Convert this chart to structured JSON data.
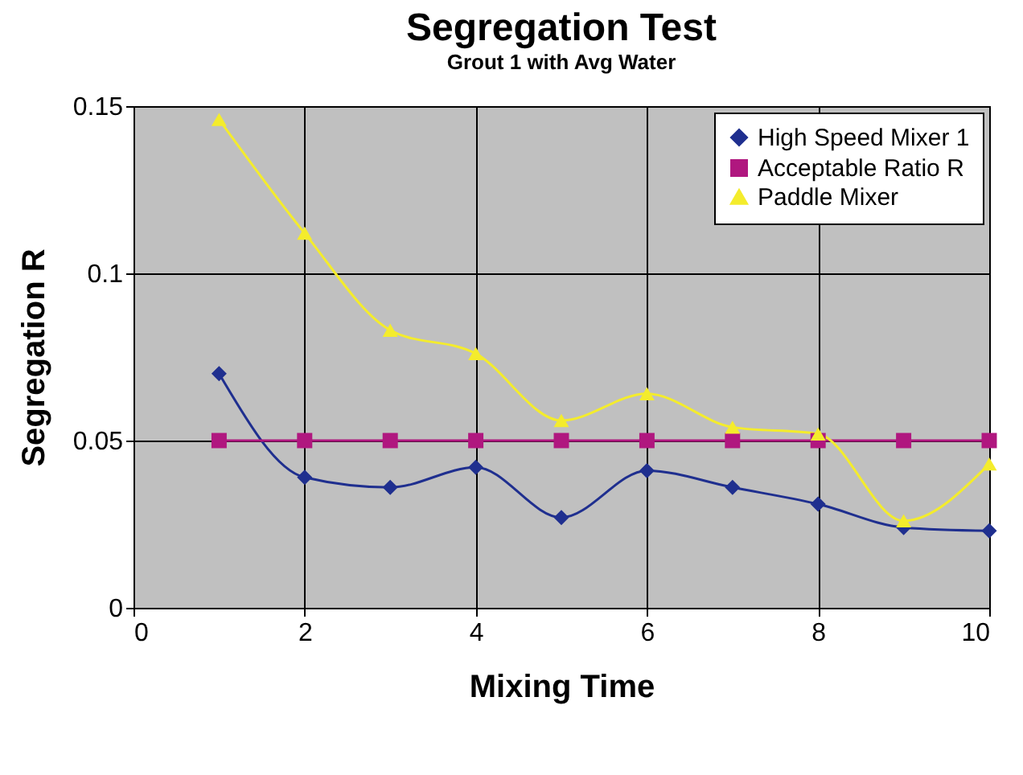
{
  "chart_data": {
    "type": "line",
    "title": "Segregation Test",
    "subtitle": "Grout 1 with Avg Water",
    "xlabel": "Mixing Time",
    "ylabel": "Segregation R",
    "x": [
      1,
      2,
      3,
      4,
      5,
      6,
      7,
      8,
      9,
      10
    ],
    "series": [
      {
        "name": "High Speed Mixer 1",
        "color": "#1f2f8f",
        "marker": "diamond",
        "values": [
          0.07,
          0.039,
          0.036,
          0.042,
          0.027,
          0.041,
          0.036,
          0.031,
          0.024,
          0.023
        ]
      },
      {
        "name": "Acceptable Ratio R",
        "color": "#b0177f",
        "marker": "square",
        "values": [
          0.05,
          0.05,
          0.05,
          0.05,
          0.05,
          0.05,
          0.05,
          0.05,
          0.05,
          0.05
        ]
      },
      {
        "name": "Paddle Mixer",
        "color": "#f4ec2c",
        "marker": "triangle",
        "values": [
          0.146,
          0.112,
          0.083,
          0.076,
          0.056,
          0.064,
          0.054,
          0.052,
          0.026,
          0.043
        ]
      }
    ],
    "xlim": [
      0,
      10
    ],
    "xticks": [
      0,
      2,
      4,
      6,
      8,
      10
    ],
    "ylim": [
      0,
      0.15
    ],
    "yticks": [
      0,
      0.05,
      0.1,
      0.15
    ],
    "grid": true,
    "legend": "top right"
  }
}
